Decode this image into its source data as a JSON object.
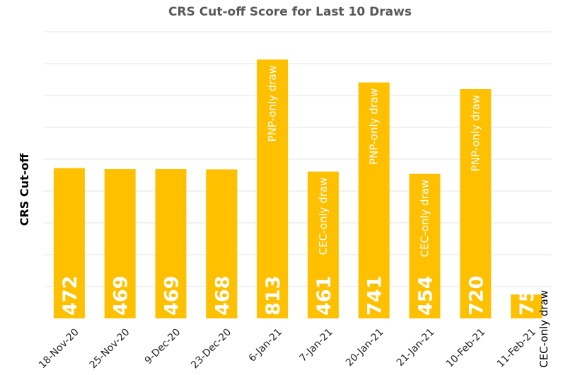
{
  "chart_data": {
    "type": "bar",
    "title": "CRS Cut-off Score for Last 10 Draws",
    "ylabel": "CRS Cut-off",
    "xlabel": "",
    "categories": [
      "18-Nov-20",
      "25-Nov-20",
      "9-Dec-20",
      "23-Dec-20",
      "6-Jan-21",
      "7-Jan-21",
      "20-Jan-21",
      "21-Jan-21",
      "10-Feb-21",
      "11-Feb-21"
    ],
    "values": [
      472,
      469,
      469,
      468,
      813,
      461,
      741,
      454,
      720,
      75
    ],
    "annotations": [
      "",
      "",
      "",
      "",
      "PNP-only draw",
      "CEC-only draw",
      "PNP-only draw",
      "CEC-only draw",
      "PNP-only draw",
      "CEC-only draw"
    ],
    "ylim": [
      0,
      900
    ],
    "grid": true,
    "legend": "none",
    "bar_color": "#FFC000"
  }
}
